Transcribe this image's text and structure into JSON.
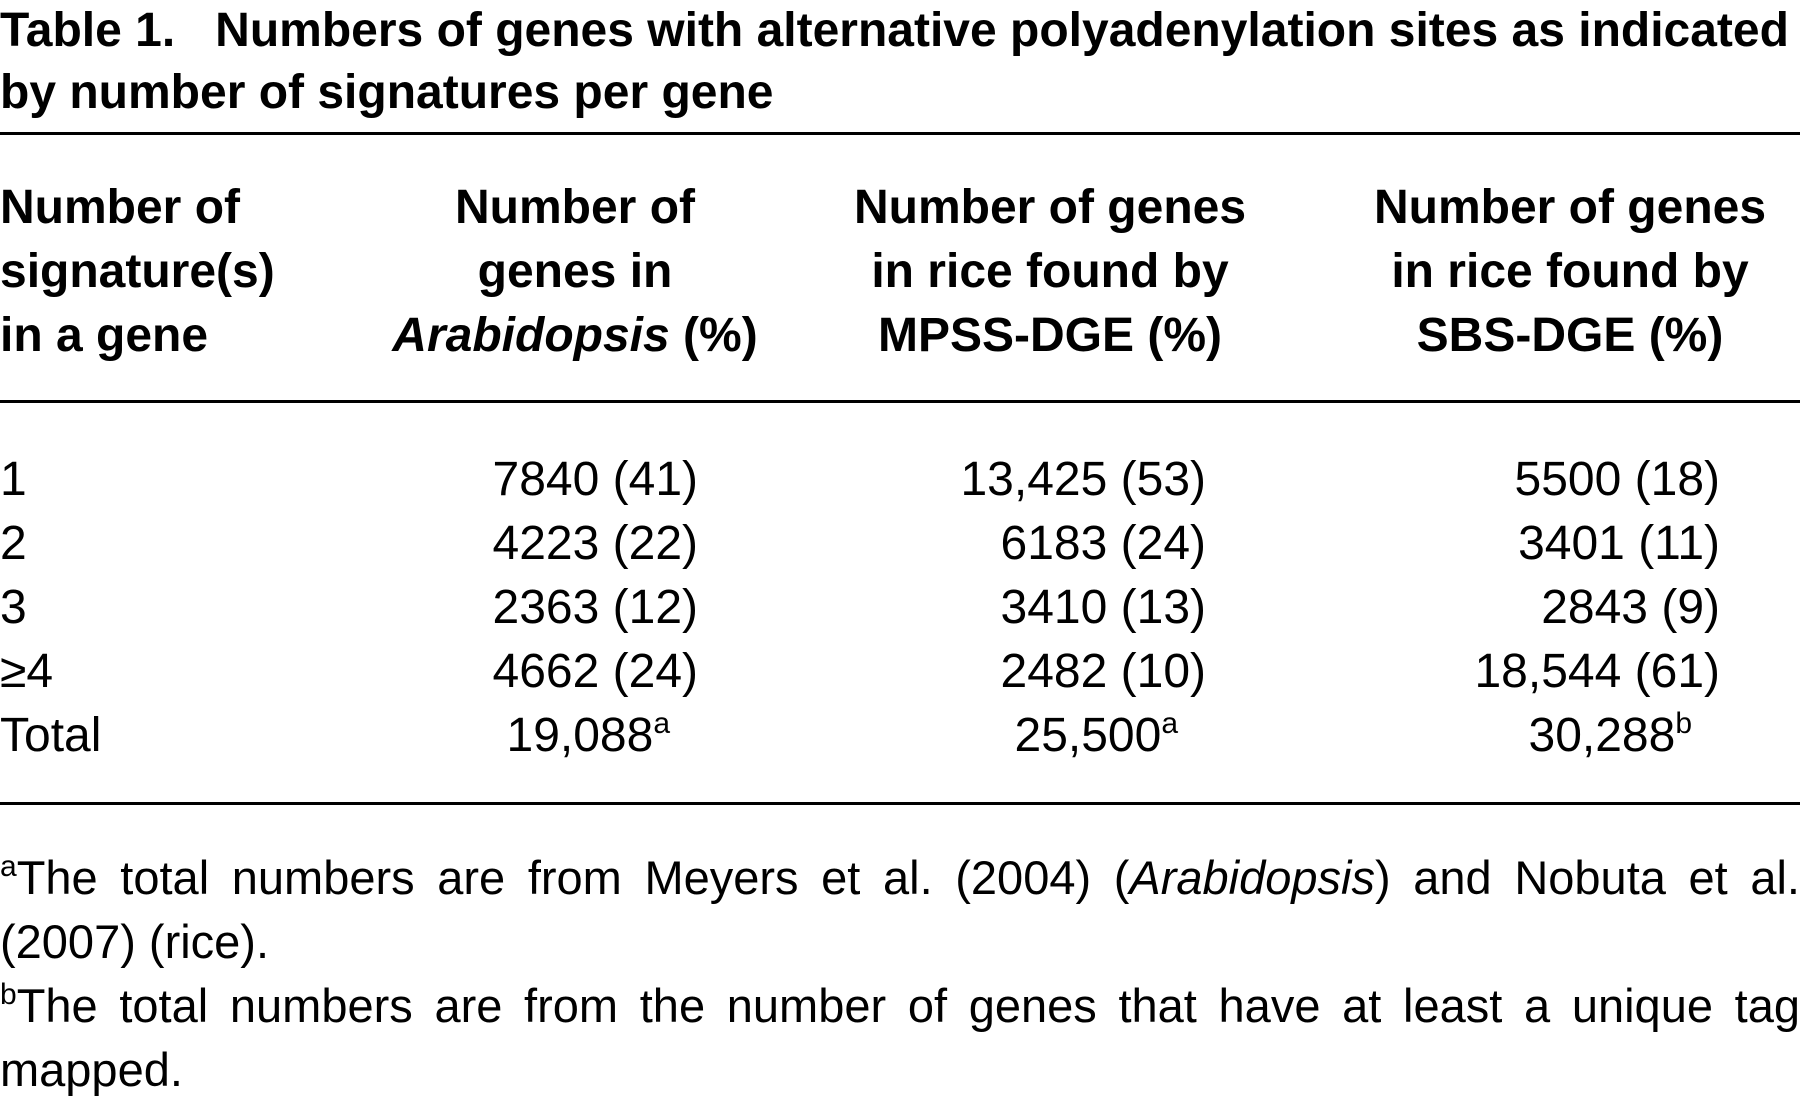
{
  "title": {
    "label": "Table 1.",
    "text": "Numbers of genes with alternative polyadenylation sites as indicated by number of signatures per gene"
  },
  "table": {
    "headers": [
      [
        "Number of",
        "signature(s)",
        "in a gene"
      ],
      [
        "Number of",
        "genes in",
        "Arabidopsis",
        "(%)"
      ],
      [
        "Number of genes",
        "in rice found by",
        "MPSS-DGE (%)"
      ],
      [
        "Number of genes",
        "in rice found by",
        "SBS-DGE (%)"
      ]
    ],
    "rows": [
      [
        "1",
        "7840 (41)",
        "13,425 (53)",
        "5500 (18)"
      ],
      [
        "2",
        "4223 (22)",
        "6183 (24)",
        "3401 (11)"
      ],
      [
        "3",
        "2363 (12)",
        "3410 (13)",
        "2843 (9)"
      ],
      [
        "≥4",
        "4662 (24)",
        "2482 (10)",
        "18,544 (61)"
      ],
      [
        "Total",
        {
          "value": "19,088",
          "note": "a"
        },
        {
          "value": "25,500",
          "note": "a"
        },
        {
          "value": "30,288",
          "note": "b"
        }
      ]
    ]
  },
  "footnotes": [
    {
      "mark": "a",
      "text": [
        "The total numbers are from Meyers et al. (2004) (",
        "Arabidopsis",
        ") and Nobuta et al. (2007) (rice)."
      ]
    },
    {
      "mark": "b",
      "text": [
        "The total numbers are from the number of genes that have at least a unique tag mapped."
      ]
    }
  ]
}
